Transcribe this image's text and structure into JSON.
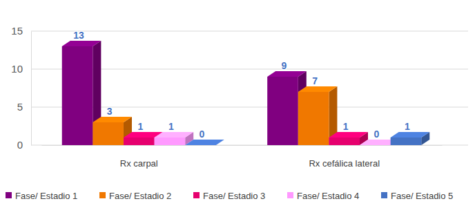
{
  "chart_data": {
    "type": "bar",
    "categories": [
      "Rx carpal",
      "Rx cefálica lateral"
    ],
    "series": [
      {
        "name": "Fase/ Estadio 1",
        "color": "#800080",
        "values": [
          13,
          9
        ]
      },
      {
        "name": "Fase/ Estadio 2",
        "color": "#F07800",
        "values": [
          3,
          7
        ]
      },
      {
        "name": "Fase/ Estadio 3",
        "color": "#E6006E",
        "values": [
          1,
          1
        ]
      },
      {
        "name": "Fase/ Estadio 4",
        "color": "#FF99FF",
        "values": [
          1,
          0
        ]
      },
      {
        "name": "Fase/ Estadio 5",
        "color": "#4472C4",
        "values": [
          0,
          1
        ]
      }
    ],
    "ylim": [
      0,
      15
    ],
    "yticks": [
      0,
      5,
      10,
      15
    ],
    "grid": true,
    "data_labels": true,
    "legend": "bottom"
  }
}
